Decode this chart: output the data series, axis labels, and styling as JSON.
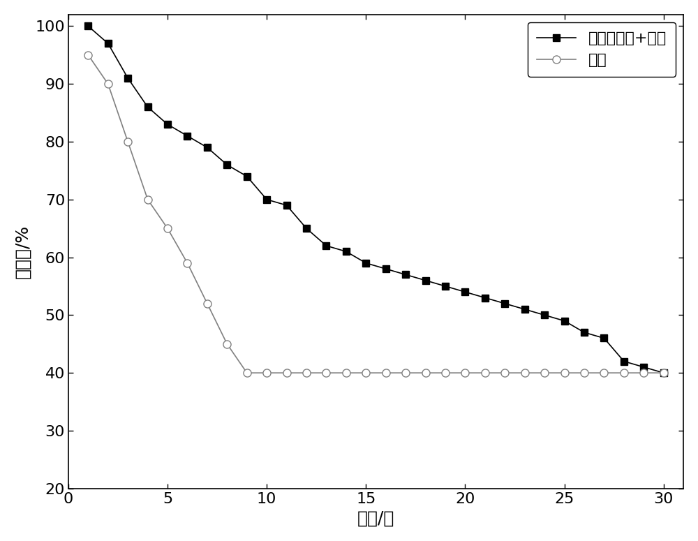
{
  "series1_label": "保水缓释肥+土壤",
  "series2_label": "土壤",
  "series1_x": [
    1,
    2,
    3,
    4,
    5,
    6,
    7,
    8,
    9,
    10,
    11,
    12,
    13,
    14,
    15,
    16,
    17,
    18,
    19,
    20,
    21,
    22,
    23,
    24,
    25,
    26,
    27,
    28,
    29,
    30
  ],
  "series1_y": [
    100,
    97,
    91,
    86,
    83,
    81,
    79,
    76,
    74,
    70,
    69,
    65,
    62,
    61,
    59,
    58,
    57,
    56,
    55,
    54,
    53,
    52,
    51,
    50,
    49,
    47,
    46,
    42,
    41,
    40
  ],
  "series2_x": [
    1,
    2,
    3,
    4,
    5,
    6,
    7,
    8,
    9,
    10,
    11,
    12,
    13,
    14,
    15,
    16,
    17,
    18,
    19,
    20,
    21,
    22,
    23,
    24,
    25,
    26,
    27,
    28,
    29,
    30
  ],
  "series2_y": [
    95,
    90,
    80,
    70,
    65,
    59,
    52,
    45,
    40,
    40,
    40,
    40,
    40,
    40,
    40,
    40,
    40,
    40,
    40,
    40,
    40,
    40,
    40,
    40,
    40,
    40,
    40,
    40,
    40,
    40
  ],
  "series1_color": "#000000",
  "series2_color": "#808080",
  "xlabel": "时间/天",
  "ylabel": "含水率/%",
  "xlim": [
    0,
    31
  ],
  "ylim": [
    20,
    102
  ],
  "xticks": [
    0,
    5,
    10,
    15,
    20,
    25,
    30
  ],
  "yticks": [
    20,
    30,
    40,
    50,
    60,
    70,
    80,
    90,
    100
  ],
  "legend_loc": "upper right",
  "xlabel_fontsize": 18,
  "ylabel_fontsize": 18,
  "tick_fontsize": 16,
  "legend_fontsize": 16,
  "figsize": [
    10.0,
    7.75
  ],
  "dpi": 100
}
